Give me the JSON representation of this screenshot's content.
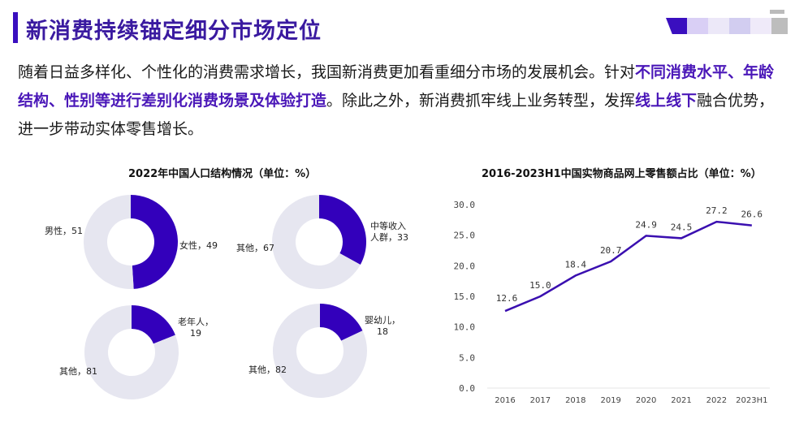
{
  "header": {
    "title": "新消费持续锚定细分市场定位"
  },
  "body": {
    "segments": [
      {
        "text": "随着日益多样化、个性化的消费需求增长，我国新消费更加看重细分市场的发展机会。针对",
        "highlight": false
      },
      {
        "text": "不同消费水平、年龄结构、性别等进行差别化消费场景及体验打造",
        "highlight": true
      },
      {
        "text": "。除此之外，新消费抓牢线上业务转型，发挥",
        "highlight": false
      },
      {
        "text": "线上线下",
        "highlight": true
      },
      {
        "text": "融合优势，进一步带动实体零售增长。",
        "highlight": false
      }
    ]
  },
  "colors": {
    "accent": "#3300bb",
    "donut_rest": "#e6e6f0",
    "title": "#3a1aa0"
  },
  "chart_data": [
    {
      "type": "pie",
      "title": "2022年中国人口结构情况（单位：%）",
      "donuts": [
        {
          "slices": [
            {
              "label": "女性，49",
              "value": 49
            },
            {
              "label": "男性，51",
              "value": 51
            }
          ]
        },
        {
          "slices": [
            {
              "label": "中等收入人群，33",
              "label_lines": [
                "中等收入",
                "人群，33"
              ],
              "value": 33
            },
            {
              "label": "其他，67",
              "value": 67
            }
          ]
        },
        {
          "slices": [
            {
              "label": "老年人，19",
              "label_lines": [
                "老年人，",
                "19"
              ],
              "value": 19
            },
            {
              "label": "其他，81",
              "value": 81
            }
          ]
        },
        {
          "slices": [
            {
              "label": "婴幼儿，18",
              "label_lines": [
                "婴幼儿，",
                "18"
              ],
              "value": 18
            },
            {
              "label": "其他，82",
              "value": 82
            }
          ]
        }
      ]
    },
    {
      "type": "line",
      "title": "2016-2023H1中国实物商品网上零售额占比（单位：%）",
      "categories": [
        "2016",
        "2017",
        "2018",
        "2019",
        "2020",
        "2021",
        "2022",
        "2023H1"
      ],
      "values": [
        12.6,
        15.0,
        18.4,
        20.7,
        24.9,
        24.5,
        27.2,
        26.6
      ],
      "data_labels": [
        "12.6",
        "15.0",
        "18.4",
        "20.7",
        "24.9",
        "24.5",
        "27.2",
        "26.6"
      ],
      "ylim": [
        0,
        30
      ],
      "yticks": [
        "0.0",
        "5.0",
        "10.0",
        "15.0",
        "20.0",
        "25.0",
        "30.0"
      ],
      "grid": false
    }
  ]
}
